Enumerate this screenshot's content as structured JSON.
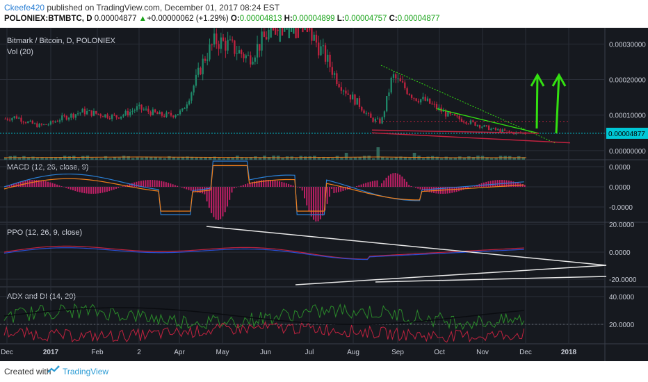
{
  "header": {
    "author": "Ckeefe420",
    "published": " published on TradingView.com, December 01, 2017 08:24 EST",
    "symbol": "POLONIEX:BTMBTC, D",
    "price": "0.00004877",
    "change_arrow": "▲",
    "change": "+0.00000062 (+1.29%)",
    "o_label": "O:",
    "o_value": "0.00004813",
    "h_label": "H:",
    "h_value": "0.00004899",
    "l_label": "L:",
    "l_value": "0.00004757",
    "c_label": "C:",
    "c_value": "0.00004877"
  },
  "footer": {
    "created_with": "Created with",
    "brand": "TradingView"
  },
  "colors": {
    "background": "#16191f",
    "grid": "#2a2e38",
    "bull": "#1f8a6a",
    "bear": "#c0223f",
    "last_price": "#00c8d6",
    "arrow": "#33e011",
    "wedge_top": "#33e011",
    "wedge_bottom": "#c0223f",
    "macd_line": "#2a7fd4",
    "signal_line": "#f07f1a",
    "histogram": "#c02066",
    "ppo_line": "#c0223f",
    "ppo_signal": "#2a4fd4",
    "trendline": "#e8e8e8"
  },
  "chart_data": [
    {
      "type": "candlestick",
      "title": "Bitmark / Bitcoin, D, POLONIEX",
      "volume_label": "Vol (20)",
      "x_ticks": [
        "Dec",
        "2017",
        "Feb",
        "2",
        "Apr",
        "May",
        "Jun",
        "Jul",
        "Aug",
        "Sep",
        "Oct",
        "Nov",
        "Dec",
        "2018"
      ],
      "y_ticks": [
        "0.00030000",
        "0.00020000",
        "0.00010000",
        "0.00000000"
      ],
      "ylim": [
        -1e-05,
        0.00033
      ],
      "last_price_label": "0.00004877",
      "last_price": 4.877e-05,
      "close_series_approx": [
        9e-05,
        9.5e-05,
        8e-05,
        7e-05,
        7.5e-05,
        9e-05,
        0.0001,
        0.00011,
        0.000105,
        0.0001,
        9.5e-05,
        0.000105,
        0.00012,
        0.00011,
        0.0001,
        0.0001,
        0.00011,
        0.00018,
        0.00026,
        0.00031,
        0.0003,
        0.00028,
        0.00026,
        0.0003,
        0.00034,
        0.00038,
        0.00042,
        0.00035,
        0.00031,
        0.00026,
        0.0002,
        0.00016,
        0.00013,
        9e-05,
        8e-05,
        0.00021,
        0.00018,
        0.00015,
        0.00014,
        0.00012,
        0.0001,
        9e-05,
        8e-05,
        7e-05,
        6e-05,
        5.5e-05,
        5e-05,
        4.88e-05
      ]
    },
    {
      "type": "line",
      "title": "MACD (12, 26, close, 9)",
      "y_ticks": [
        "0.0000",
        "0.0000",
        "-0.0000"
      ]
    },
    {
      "type": "line",
      "title": "PPO (12, 26, 9, close)",
      "y_ticks": [
        "20.0000",
        "0.0000",
        "-20.0000"
      ]
    },
    {
      "type": "line",
      "title": "ADX and DI (14, 20)",
      "y_ticks": [
        "40.0000",
        "20.0000"
      ]
    }
  ]
}
